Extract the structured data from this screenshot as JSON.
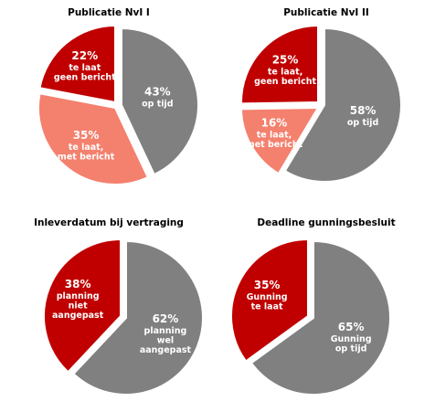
{
  "chart_data": [
    {
      "type": "pie",
      "title": "Publicatie NvI I",
      "slices": [
        {
          "value": 43,
          "pct_label": "43%",
          "text": [
            "op tijd"
          ],
          "color": "#808080"
        },
        {
          "value": 35,
          "pct_label": "35%",
          "text": [
            "te laat,",
            "met bericht"
          ],
          "color": "#f4806e"
        },
        {
          "value": 22,
          "pct_label": "22%",
          "text": [
            "te laat",
            "geen bericht"
          ],
          "color": "#c00000"
        }
      ]
    },
    {
      "type": "pie",
      "title": "Publicatie NvI II",
      "slices": [
        {
          "value": 58,
          "pct_label": "58%",
          "text": [
            "op tijd"
          ],
          "color": "#808080"
        },
        {
          "value": 16,
          "pct_label": "16%",
          "text": [
            "te laat,",
            "met bericht"
          ],
          "color": "#f4806e"
        },
        {
          "value": 25,
          "pct_label": "25%",
          "text": [
            "te laat,",
            "geen bericht"
          ],
          "color": "#c00000"
        }
      ]
    },
    {
      "type": "pie",
      "title": "Inleverdatum bij vertraging",
      "slices": [
        {
          "value": 62,
          "pct_label": "62%",
          "text": [
            "planning",
            "wel",
            "aangepast"
          ],
          "color": "#808080"
        },
        {
          "value": 38,
          "pct_label": "38%",
          "text": [
            "planning",
            "niet",
            "aangepast"
          ],
          "color": "#c00000"
        }
      ]
    },
    {
      "type": "pie",
      "title": "Deadline gunningsbesluit",
      "slices": [
        {
          "value": 65,
          "pct_label": "65%",
          "text": [
            "Gunning",
            "op tijd"
          ],
          "color": "#808080"
        },
        {
          "value": 35,
          "pct_label": "35%",
          "text": [
            "Gunning",
            "te laat"
          ],
          "color": "#c00000"
        }
      ]
    }
  ]
}
